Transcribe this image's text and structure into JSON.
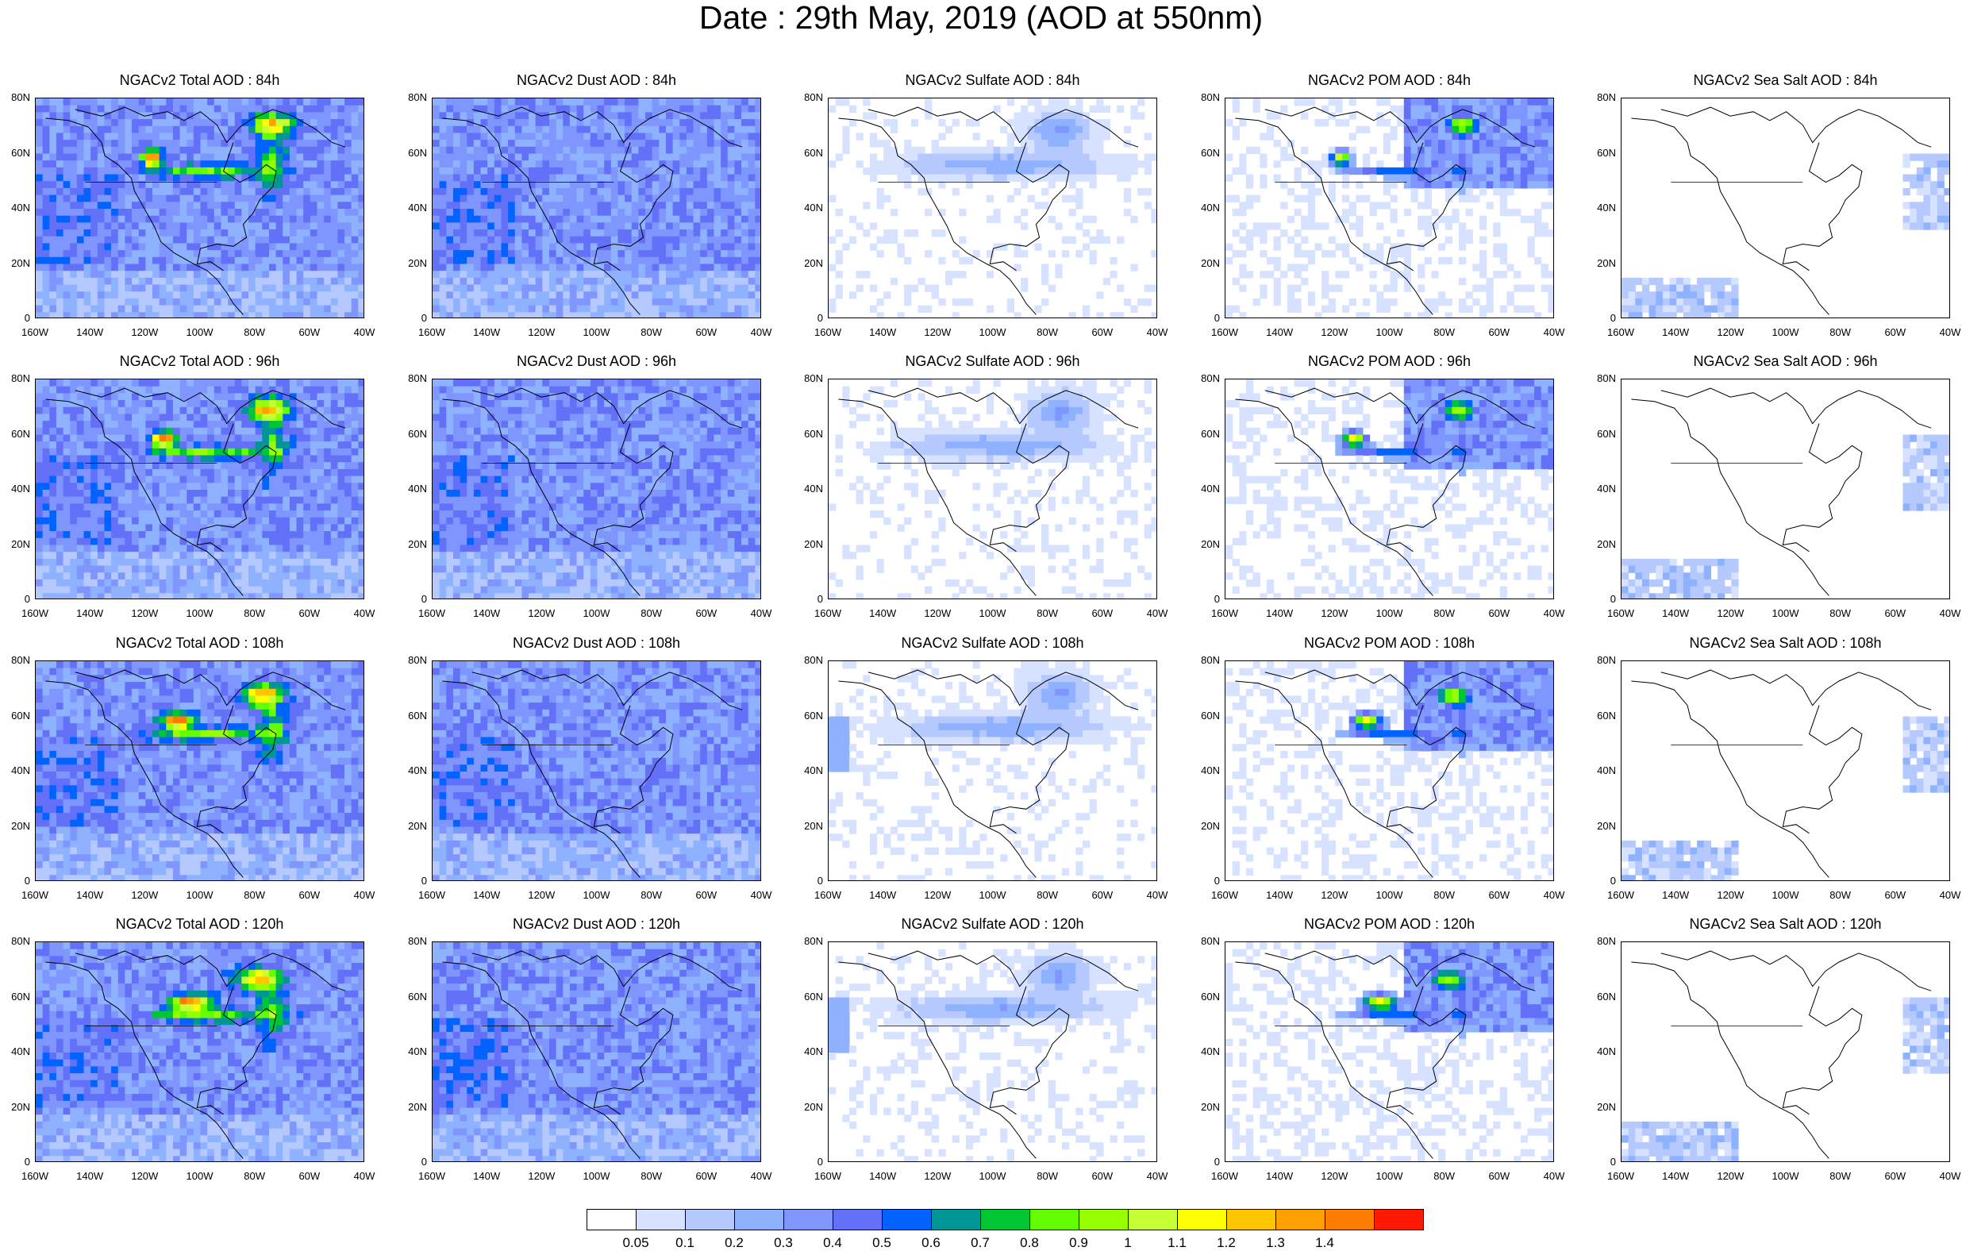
{
  "title": "Date : 29th May, 2019 (AOD at 550nm)",
  "lat_ticks": [
    "80N",
    "60N",
    "40N",
    "20N",
    "0"
  ],
  "lon_ticks": [
    "160W",
    "140W",
    "120W",
    "100W",
    "80W",
    "60W",
    "40W"
  ],
  "panels": [
    {
      "title": "NGACv2 Total AOD : 84h",
      "species": "total",
      "hour": 84
    },
    {
      "title": "NGACv2 Dust AOD : 84h",
      "species": "dust",
      "hour": 84
    },
    {
      "title": "NGACv2 Sulfate AOD : 84h",
      "species": "sulfate",
      "hour": 84
    },
    {
      "title": "NGACv2 POM AOD : 84h",
      "species": "pom",
      "hour": 84
    },
    {
      "title": "NGACv2 Sea Salt AOD : 84h",
      "species": "seasalt",
      "hour": 84
    },
    {
      "title": "NGACv2 Total AOD : 96h",
      "species": "total",
      "hour": 96
    },
    {
      "title": "NGACv2 Dust AOD : 96h",
      "species": "dust",
      "hour": 96
    },
    {
      "title": "NGACv2 Sulfate AOD : 96h",
      "species": "sulfate",
      "hour": 96
    },
    {
      "title": "NGACv2 POM AOD : 96h",
      "species": "pom",
      "hour": 96
    },
    {
      "title": "NGACv2 Sea Salt AOD : 96h",
      "species": "seasalt",
      "hour": 96
    },
    {
      "title": "NGACv2 Total AOD : 108h",
      "species": "total",
      "hour": 108
    },
    {
      "title": "NGACv2 Dust AOD : 108h",
      "species": "dust",
      "hour": 108
    },
    {
      "title": "NGACv2 Sulfate AOD : 108h",
      "species": "sulfate",
      "hour": 108
    },
    {
      "title": "NGACv2 POM AOD : 108h",
      "species": "pom",
      "hour": 108
    },
    {
      "title": "NGACv2 Sea Salt AOD : 108h",
      "species": "seasalt",
      "hour": 108
    },
    {
      "title": "NGACv2 Total AOD : 120h",
      "species": "total",
      "hour": 120
    },
    {
      "title": "NGACv2 Dust AOD : 120h",
      "species": "dust",
      "hour": 120
    },
    {
      "title": "NGACv2 Sulfate AOD : 120h",
      "species": "sulfate",
      "hour": 120
    },
    {
      "title": "NGACv2 POM AOD : 120h",
      "species": "pom",
      "hour": 120
    },
    {
      "title": "NGACv2 Sea Salt  AOD : 120h",
      "species": "seasalt",
      "hour": 120
    }
  ],
  "colorbar": {
    "colors": [
      "#ffffff",
      "#d6e2ff",
      "#b5c9ff",
      "#8eb2ff",
      "#7f96ff",
      "#6370f8",
      "#0063ff",
      "#009696",
      "#00c633",
      "#63ff00",
      "#96ff00",
      "#c6ff33",
      "#ffff00",
      "#ffc600",
      "#ffa000",
      "#ff7c00",
      "#ff1900"
    ],
    "labels": [
      "0.05",
      "0.1",
      "0.2",
      "0.3",
      "0.4",
      "0.5",
      "0.6",
      "0.7",
      "0.8",
      "0.9",
      "1",
      "1.1",
      "1.2",
      "1.3",
      "1.4"
    ]
  }
}
